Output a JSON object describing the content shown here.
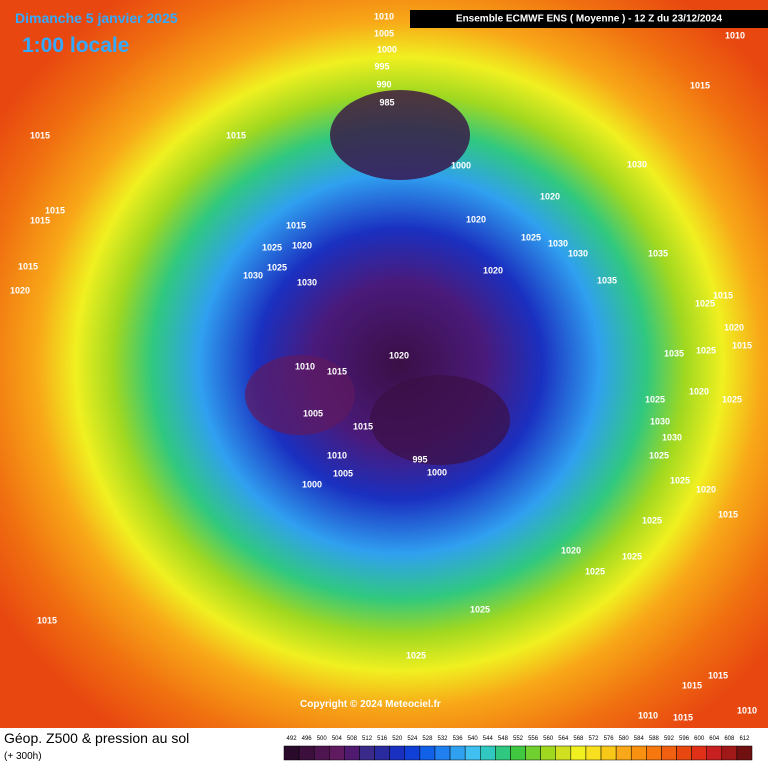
{
  "header": {
    "date": "Dimanche 5 janvier 2025",
    "time": "1:00 locale",
    "model": "Ensemble ECMWF ENS  ( Moyenne )  -  12 Z du 23/12/2024"
  },
  "footer": {
    "title": "Géop. Z500 & pression au sol",
    "lead": "(+ 300h)",
    "copyright": "Copyright © 2024 Meteociel.fr"
  },
  "isobar_labels": [
    "1010",
    "1005",
    "1000",
    "995",
    "990",
    "985",
    "1010",
    "1015",
    "1015",
    "1015",
    "1000",
    "1030",
    "1020",
    "1015",
    "1015",
    "1015",
    "1020",
    "1025",
    "1020",
    "1025",
    "1030",
    "1030",
    "1035",
    "1015",
    "1030",
    "1025",
    "1030",
    "1020",
    "1020",
    "1035",
    "1015",
    "1025",
    "1020",
    "1025",
    "1015",
    "1020",
    "1010",
    "1015",
    "1005",
    "1015",
    "1010",
    "1005",
    "1000",
    "995",
    "1000",
    "1030",
    "1030",
    "1025",
    "1025",
    "1020",
    "1015",
    "1025",
    "1020",
    "1025",
    "1025",
    "1025",
    "1015",
    "1025",
    "1015",
    "1015",
    "1010",
    "1015",
    "1010",
    "1020",
    "1025",
    "1035",
    "1025"
  ],
  "colorbar": {
    "values": [
      492,
      496,
      500,
      504,
      508,
      512,
      516,
      520,
      524,
      528,
      532,
      536,
      540,
      544,
      548,
      552,
      556,
      560,
      564,
      568,
      572,
      576,
      580,
      584,
      588,
      592,
      596,
      600,
      604,
      608,
      612
    ],
    "colors": [
      "#2a0a2a",
      "#3c0f3c",
      "#4e1550",
      "#601a60",
      "#501a70",
      "#3a2a8a",
      "#2a2aa0",
      "#1a30c0",
      "#1040d8",
      "#1060e8",
      "#2080f0",
      "#30a0f0",
      "#40c0f0",
      "#30c8c0",
      "#30c880",
      "#40c840",
      "#70d030",
      "#a0d820",
      "#d0e020",
      "#f0f020",
      "#f8e020",
      "#f8c818",
      "#f8a818",
      "#f89010",
      "#f87810",
      "#f06010",
      "#e84810",
      "#e03018",
      "#c82020",
      "#a01818",
      "#701010"
    ]
  }
}
